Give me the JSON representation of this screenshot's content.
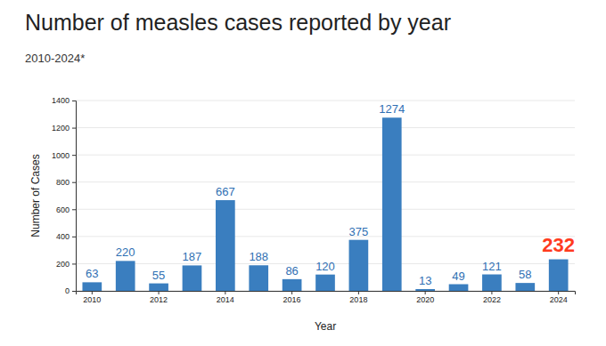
{
  "chart_data": {
    "type": "bar",
    "title": "Number of measles cases reported by year",
    "subtitle": "2010-2024*",
    "x_label": "Year",
    "y_label": "Number of Cases",
    "categories": [
      "2010",
      null,
      "2012",
      null,
      "2014",
      null,
      "2016",
      null,
      "2018",
      null,
      "2020",
      null,
      "2022",
      null,
      "2024"
    ],
    "values": [
      63,
      220,
      55,
      187,
      667,
      188,
      86,
      120,
      375,
      1274,
      13,
      49,
      121,
      58,
      232
    ],
    "color": "#3a7ebf",
    "ylim": [
      0,
      1400
    ],
    "yticks": [
      0,
      200,
      400,
      600,
      800,
      1000,
      1200,
      1400
    ],
    "grid": true,
    "data_labels": true
  }
}
